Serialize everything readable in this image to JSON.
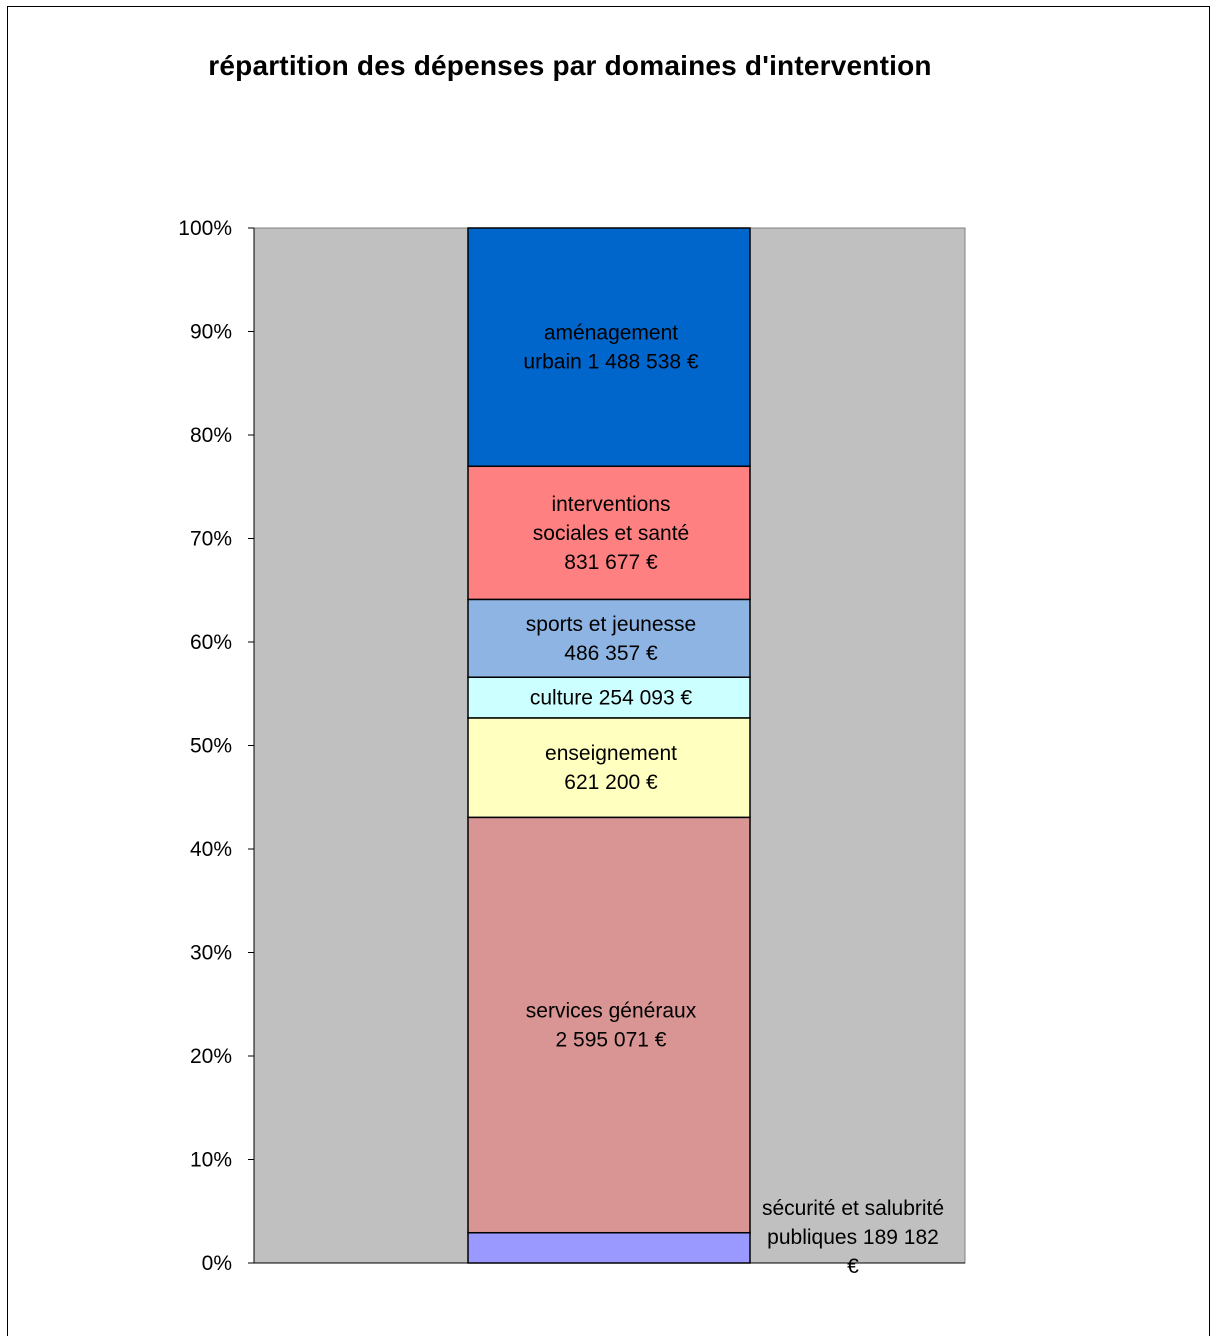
{
  "chart_data": {
    "type": "bar",
    "stacked": true,
    "percent": true,
    "title": "répartition des dépenses par domaines d'intervention",
    "xlabel": "",
    "ylabel": "",
    "ylim": [
      0,
      100
    ],
    "y_ticks": [
      "0%",
      "10%",
      "20%",
      "30%",
      "40%",
      "50%",
      "60%",
      "70%",
      "80%",
      "90%",
      "100%"
    ],
    "grid": false,
    "legend": "none",
    "plot_background": "#c0c0c0",
    "series": [
      {
        "name": "sécurité et salubrité publiques",
        "value": 189182,
        "label_lines": [
          "sécurité et salubrité",
          "publiques  189 182",
          "€"
        ],
        "color": "#9999ff",
        "label_outside": true
      },
      {
        "name": "services généraux",
        "value": 2595071,
        "label_lines": [
          "services généraux",
          "2 595 071 €"
        ],
        "color": "#d99594"
      },
      {
        "name": "enseignement",
        "value": 621200,
        "label_lines": [
          "enseignement",
          "621 200 €"
        ],
        "color": "#ffffc0"
      },
      {
        "name": "culture",
        "value": 254093,
        "label_lines": [
          "culture  254 093 €"
        ],
        "color": "#ccffff"
      },
      {
        "name": "sports et jeunesse",
        "value": 486357,
        "label_lines": [
          "sports et jeunesse",
          "486 357 €"
        ],
        "color": "#8eb4e3"
      },
      {
        "name": "interventions sociales et santé",
        "value": 831677,
        "label_lines": [
          "interventions",
          "sociales et santé",
          "831 677 €"
        ],
        "color": "#ff8080"
      },
      {
        "name": "aménagement urbain",
        "value": 1488538,
        "label_lines": [
          "aménagement",
          "urbain  1 488 538 €"
        ],
        "color": "#0066cc"
      }
    ]
  }
}
